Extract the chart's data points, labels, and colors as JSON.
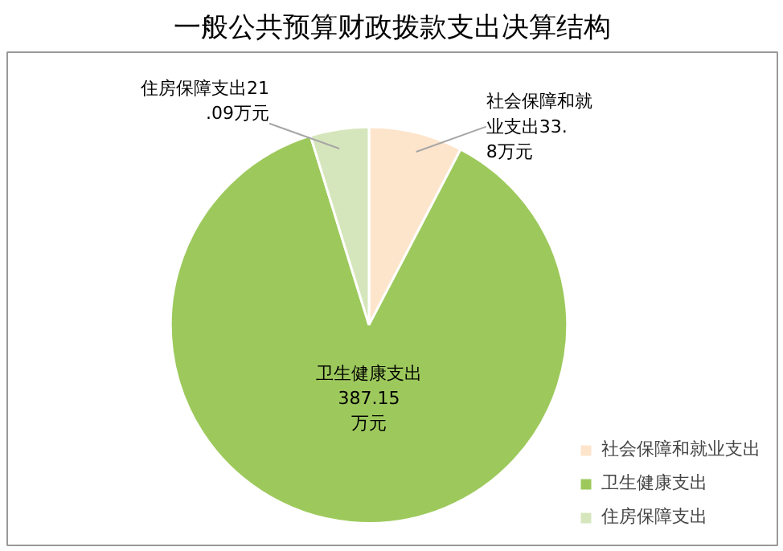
{
  "chart_data": {
    "type": "pie",
    "title": "一般公共预算财政拨款支出决算结构",
    "categories": [
      "社会保障和就业支出",
      "卫生健康支出",
      "住房保障支出"
    ],
    "values": [
      33.8,
      387.15,
      21.09
    ],
    "colors": [
      "#fde5cc",
      "#9dc95c",
      "#d6e6bc"
    ],
    "value_labels": [
      "社会保障和就业支出33.8万元",
      "卫生健康支出387.15万元",
      "住房保障支出21.09万元"
    ],
    "legend": "bottom right"
  }
}
